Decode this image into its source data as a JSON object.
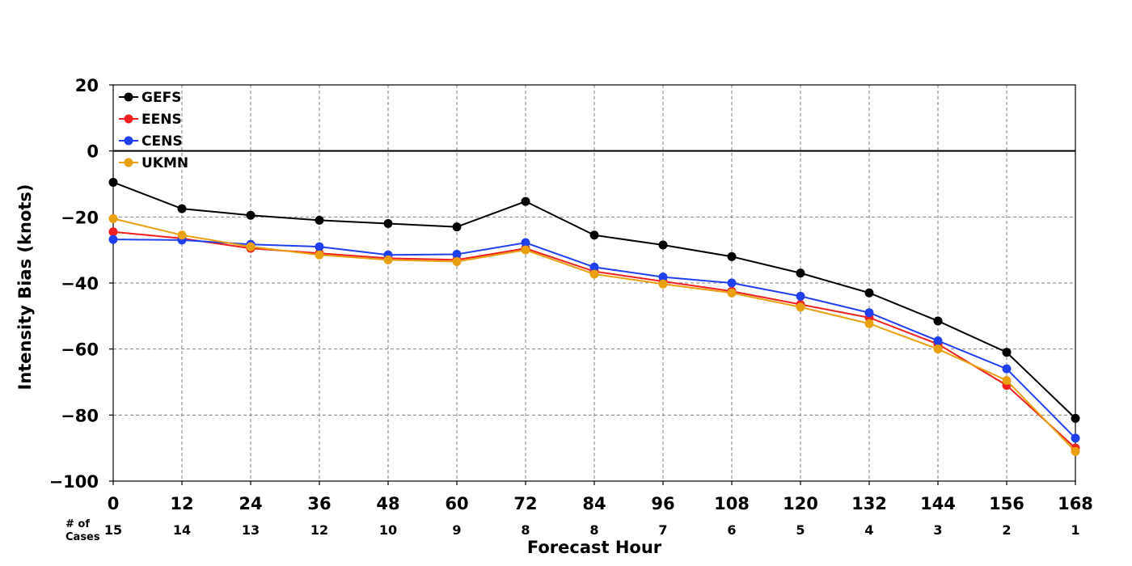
{
  "chart_data": {
    "type": "line",
    "xlabel": "Forecast Hour",
    "ylabel": "Intensity Bias (knots)",
    "xlim": [
      0,
      168
    ],
    "ylim": [
      -100,
      20
    ],
    "x": [
      0,
      12,
      24,
      36,
      48,
      60,
      72,
      84,
      96,
      108,
      120,
      132,
      144,
      156,
      168
    ],
    "x_ticks": [
      "0",
      "12",
      "24",
      "36",
      "48",
      "60",
      "72",
      "84",
      "96",
      "108",
      "120",
      "132",
      "144",
      "156",
      "168"
    ],
    "y_ticks": [
      20,
      0,
      -20,
      -40,
      -60,
      -80,
      -100
    ],
    "y_tick_labels": [
      "20",
      "0",
      "−20",
      "−40",
      "−60",
      "−80",
      "−100"
    ],
    "grid": true,
    "grid_style": "dashed",
    "legend_position": "top-left",
    "cases_title": "# of\nCases",
    "cases": [
      "15",
      "14",
      "13",
      "12",
      "10",
      "9",
      "8",
      "8",
      "7",
      "6",
      "5",
      "4",
      "3",
      "2",
      "1"
    ],
    "series": [
      {
        "name": "GEFS",
        "color": "#000000",
        "values": [
          -9.5,
          -17.5,
          -19.5,
          -21,
          -22,
          -23,
          -15.3,
          -25.5,
          -28.5,
          -32,
          -37,
          -43,
          -51.5,
          -61,
          -81
        ]
      },
      {
        "name": "EENS",
        "color": "#f02020",
        "values": [
          -24.5,
          -26.5,
          -29.5,
          -31,
          -32.5,
          -33,
          -29.5,
          -36.5,
          -39.5,
          -42.5,
          -46.5,
          -50.5,
          -58.5,
          -71,
          -90
        ]
      },
      {
        "name": "CENS",
        "color": "#2040f0",
        "values": [
          -26.8,
          -27,
          -28.3,
          -29,
          -31.5,
          -31.3,
          -27.8,
          -35.2,
          -38.2,
          -40,
          -44,
          -49,
          -57.5,
          -66,
          -87
        ]
      },
      {
        "name": "UKMN",
        "color": "#e8a010",
        "values": [
          -20.5,
          -25.5,
          -29,
          -31.5,
          -33,
          -33.5,
          -30,
          -37.3,
          -40.3,
          -43,
          -47.3,
          -52.3,
          -60,
          -69.5,
          -91
        ]
      }
    ]
  }
}
